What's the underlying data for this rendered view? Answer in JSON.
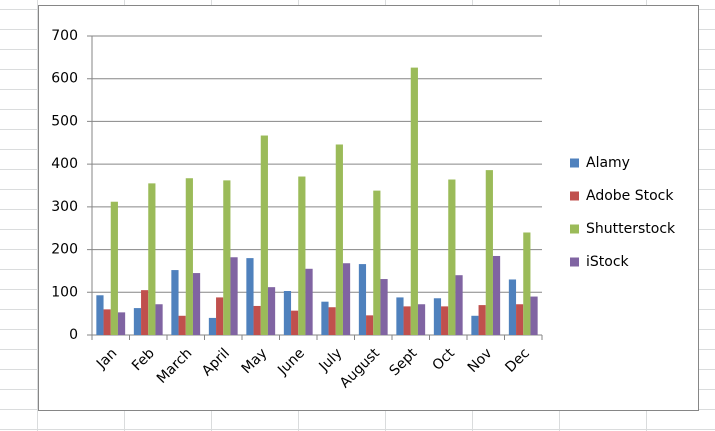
{
  "chart_data": {
    "type": "bar",
    "categories": [
      "Jan",
      "Feb",
      "March",
      "April",
      "May",
      "June",
      "July",
      "August",
      "Sept",
      "Oct",
      "Nov",
      "Dec"
    ],
    "series": [
      {
        "name": "Alamy",
        "color": "#4f81bd",
        "values": [
          93,
          63,
          152,
          40,
          180,
          103,
          78,
          166,
          88,
          86,
          45,
          130
        ]
      },
      {
        "name": "Adobe Stock",
        "color": "#c0504d",
        "values": [
          60,
          105,
          45,
          88,
          68,
          57,
          65,
          46,
          67,
          67,
          70,
          72
        ]
      },
      {
        "name": "Shutterstock",
        "color": "#9bbb59",
        "values": [
          312,
          355,
          367,
          362,
          467,
          371,
          446,
          338,
          626,
          364,
          386,
          240
        ]
      },
      {
        "name": "iStock",
        "color": "#8064a2",
        "values": [
          53,
          72,
          145,
          182,
          112,
          155,
          168,
          131,
          72,
          140,
          185,
          90
        ]
      }
    ],
    "ylim": [
      0,
      700
    ],
    "yticks": [
      0,
      100,
      200,
      300,
      400,
      500,
      600,
      700
    ],
    "grid": true,
    "legend": "right"
  }
}
